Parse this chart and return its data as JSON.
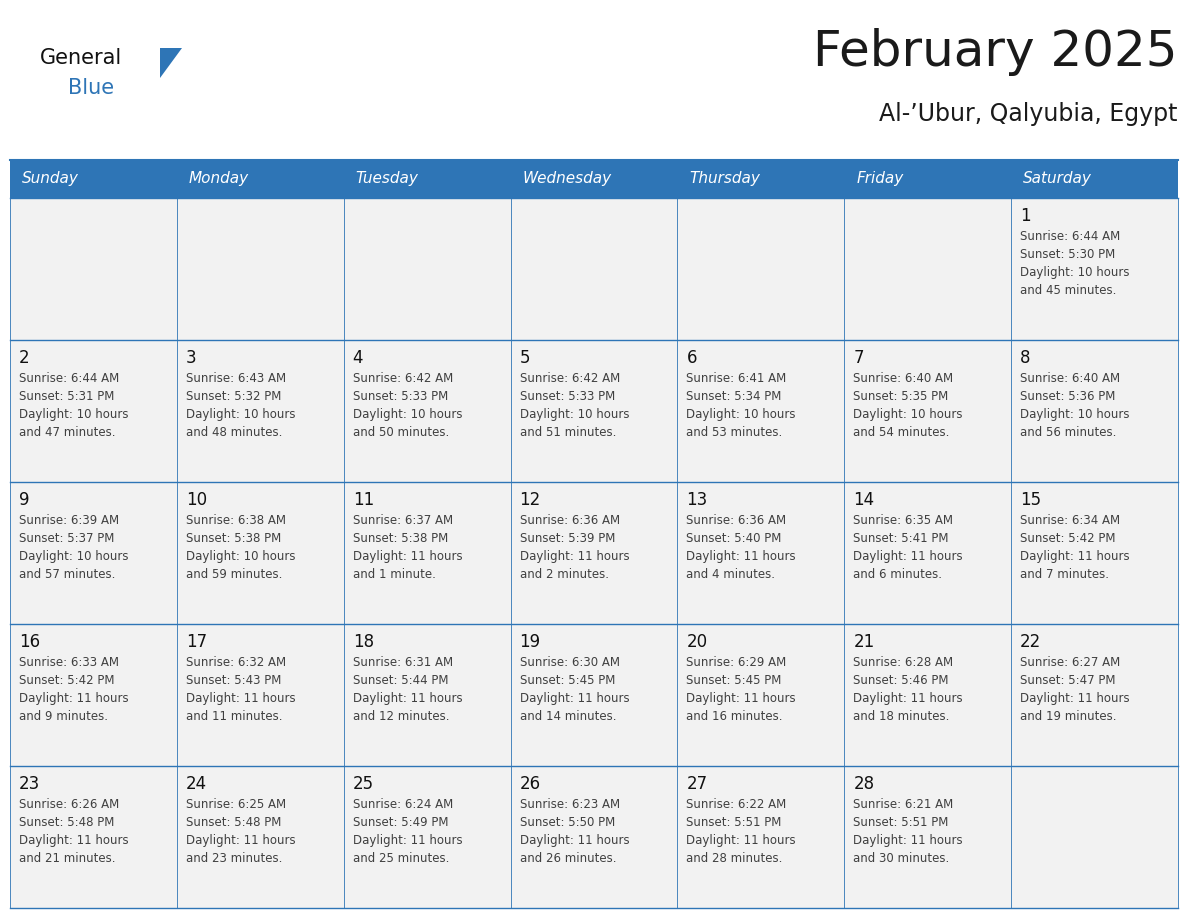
{
  "title": "February 2025",
  "subtitle": "Al-’Ubur, Qalyubia, Egypt",
  "header_bg": "#2E75B6",
  "header_text": "#FFFFFF",
  "cell_bg": "#F2F2F2",
  "border_color": "#2E75B6",
  "title_color": "#1a1a1a",
  "subtitle_color": "#1a1a1a",
  "text_color": "#404040",
  "days_of_week": [
    "Sunday",
    "Monday",
    "Tuesday",
    "Wednesday",
    "Thursday",
    "Friday",
    "Saturday"
  ],
  "weeks": [
    [
      {
        "day": null,
        "info": ""
      },
      {
        "day": null,
        "info": ""
      },
      {
        "day": null,
        "info": ""
      },
      {
        "day": null,
        "info": ""
      },
      {
        "day": null,
        "info": ""
      },
      {
        "day": null,
        "info": ""
      },
      {
        "day": 1,
        "info": "Sunrise: 6:44 AM\nSunset: 5:30 PM\nDaylight: 10 hours\nand 45 minutes."
      }
    ],
    [
      {
        "day": 2,
        "info": "Sunrise: 6:44 AM\nSunset: 5:31 PM\nDaylight: 10 hours\nand 47 minutes."
      },
      {
        "day": 3,
        "info": "Sunrise: 6:43 AM\nSunset: 5:32 PM\nDaylight: 10 hours\nand 48 minutes."
      },
      {
        "day": 4,
        "info": "Sunrise: 6:42 AM\nSunset: 5:33 PM\nDaylight: 10 hours\nand 50 minutes."
      },
      {
        "day": 5,
        "info": "Sunrise: 6:42 AM\nSunset: 5:33 PM\nDaylight: 10 hours\nand 51 minutes."
      },
      {
        "day": 6,
        "info": "Sunrise: 6:41 AM\nSunset: 5:34 PM\nDaylight: 10 hours\nand 53 minutes."
      },
      {
        "day": 7,
        "info": "Sunrise: 6:40 AM\nSunset: 5:35 PM\nDaylight: 10 hours\nand 54 minutes."
      },
      {
        "day": 8,
        "info": "Sunrise: 6:40 AM\nSunset: 5:36 PM\nDaylight: 10 hours\nand 56 minutes."
      }
    ],
    [
      {
        "day": 9,
        "info": "Sunrise: 6:39 AM\nSunset: 5:37 PM\nDaylight: 10 hours\nand 57 minutes."
      },
      {
        "day": 10,
        "info": "Sunrise: 6:38 AM\nSunset: 5:38 PM\nDaylight: 10 hours\nand 59 minutes."
      },
      {
        "day": 11,
        "info": "Sunrise: 6:37 AM\nSunset: 5:38 PM\nDaylight: 11 hours\nand 1 minute."
      },
      {
        "day": 12,
        "info": "Sunrise: 6:36 AM\nSunset: 5:39 PM\nDaylight: 11 hours\nand 2 minutes."
      },
      {
        "day": 13,
        "info": "Sunrise: 6:36 AM\nSunset: 5:40 PM\nDaylight: 11 hours\nand 4 minutes."
      },
      {
        "day": 14,
        "info": "Sunrise: 6:35 AM\nSunset: 5:41 PM\nDaylight: 11 hours\nand 6 minutes."
      },
      {
        "day": 15,
        "info": "Sunrise: 6:34 AM\nSunset: 5:42 PM\nDaylight: 11 hours\nand 7 minutes."
      }
    ],
    [
      {
        "day": 16,
        "info": "Sunrise: 6:33 AM\nSunset: 5:42 PM\nDaylight: 11 hours\nand 9 minutes."
      },
      {
        "day": 17,
        "info": "Sunrise: 6:32 AM\nSunset: 5:43 PM\nDaylight: 11 hours\nand 11 minutes."
      },
      {
        "day": 18,
        "info": "Sunrise: 6:31 AM\nSunset: 5:44 PM\nDaylight: 11 hours\nand 12 minutes."
      },
      {
        "day": 19,
        "info": "Sunrise: 6:30 AM\nSunset: 5:45 PM\nDaylight: 11 hours\nand 14 minutes."
      },
      {
        "day": 20,
        "info": "Sunrise: 6:29 AM\nSunset: 5:45 PM\nDaylight: 11 hours\nand 16 minutes."
      },
      {
        "day": 21,
        "info": "Sunrise: 6:28 AM\nSunset: 5:46 PM\nDaylight: 11 hours\nand 18 minutes."
      },
      {
        "day": 22,
        "info": "Sunrise: 6:27 AM\nSunset: 5:47 PM\nDaylight: 11 hours\nand 19 minutes."
      }
    ],
    [
      {
        "day": 23,
        "info": "Sunrise: 6:26 AM\nSunset: 5:48 PM\nDaylight: 11 hours\nand 21 minutes."
      },
      {
        "day": 24,
        "info": "Sunrise: 6:25 AM\nSunset: 5:48 PM\nDaylight: 11 hours\nand 23 minutes."
      },
      {
        "day": 25,
        "info": "Sunrise: 6:24 AM\nSunset: 5:49 PM\nDaylight: 11 hours\nand 25 minutes."
      },
      {
        "day": 26,
        "info": "Sunrise: 6:23 AM\nSunset: 5:50 PM\nDaylight: 11 hours\nand 26 minutes."
      },
      {
        "day": 27,
        "info": "Sunrise: 6:22 AM\nSunset: 5:51 PM\nDaylight: 11 hours\nand 28 minutes."
      },
      {
        "day": 28,
        "info": "Sunrise: 6:21 AM\nSunset: 5:51 PM\nDaylight: 11 hours\nand 30 minutes."
      },
      {
        "day": null,
        "info": ""
      }
    ]
  ]
}
